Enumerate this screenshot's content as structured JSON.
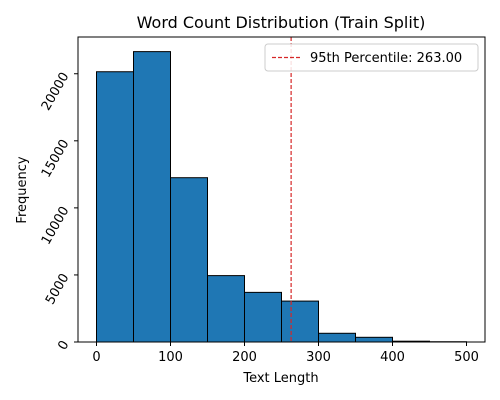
{
  "chart_data": {
    "type": "bar",
    "title": "Word Count Distribution (Train Split)",
    "xlabel": "Text Length",
    "ylabel": "Frequency",
    "bins": [
      {
        "start": 0,
        "end": 50,
        "value": 20150
      },
      {
        "start": 50,
        "end": 100,
        "value": 21650
      },
      {
        "start": 100,
        "end": 150,
        "value": 12250
      },
      {
        "start": 150,
        "end": 200,
        "value": 4950
      },
      {
        "start": 200,
        "end": 250,
        "value": 3700
      },
      {
        "start": 250,
        "end": 300,
        "value": 3050
      },
      {
        "start": 300,
        "end": 350,
        "value": 650
      },
      {
        "start": 350,
        "end": 400,
        "value": 350
      },
      {
        "start": 400,
        "end": 450,
        "value": 60
      },
      {
        "start": 450,
        "end": 500,
        "value": 20
      }
    ],
    "xlim": [
      -25,
      525
    ],
    "ylim": [
      0,
      22740
    ],
    "xticks": [
      0,
      100,
      200,
      300,
      400,
      500
    ],
    "yticks": [
      0,
      5000,
      10000,
      15000,
      20000
    ],
    "ytick_rotation_deg": -60,
    "bar_color": "#1f77b4",
    "bar_edge_color": "#000000",
    "reference_line": {
      "x": 263,
      "label": "95th Percentile: 263.00",
      "color": "#d62728",
      "style": "dashed"
    },
    "legend_position": "top-right",
    "grid": false
  }
}
